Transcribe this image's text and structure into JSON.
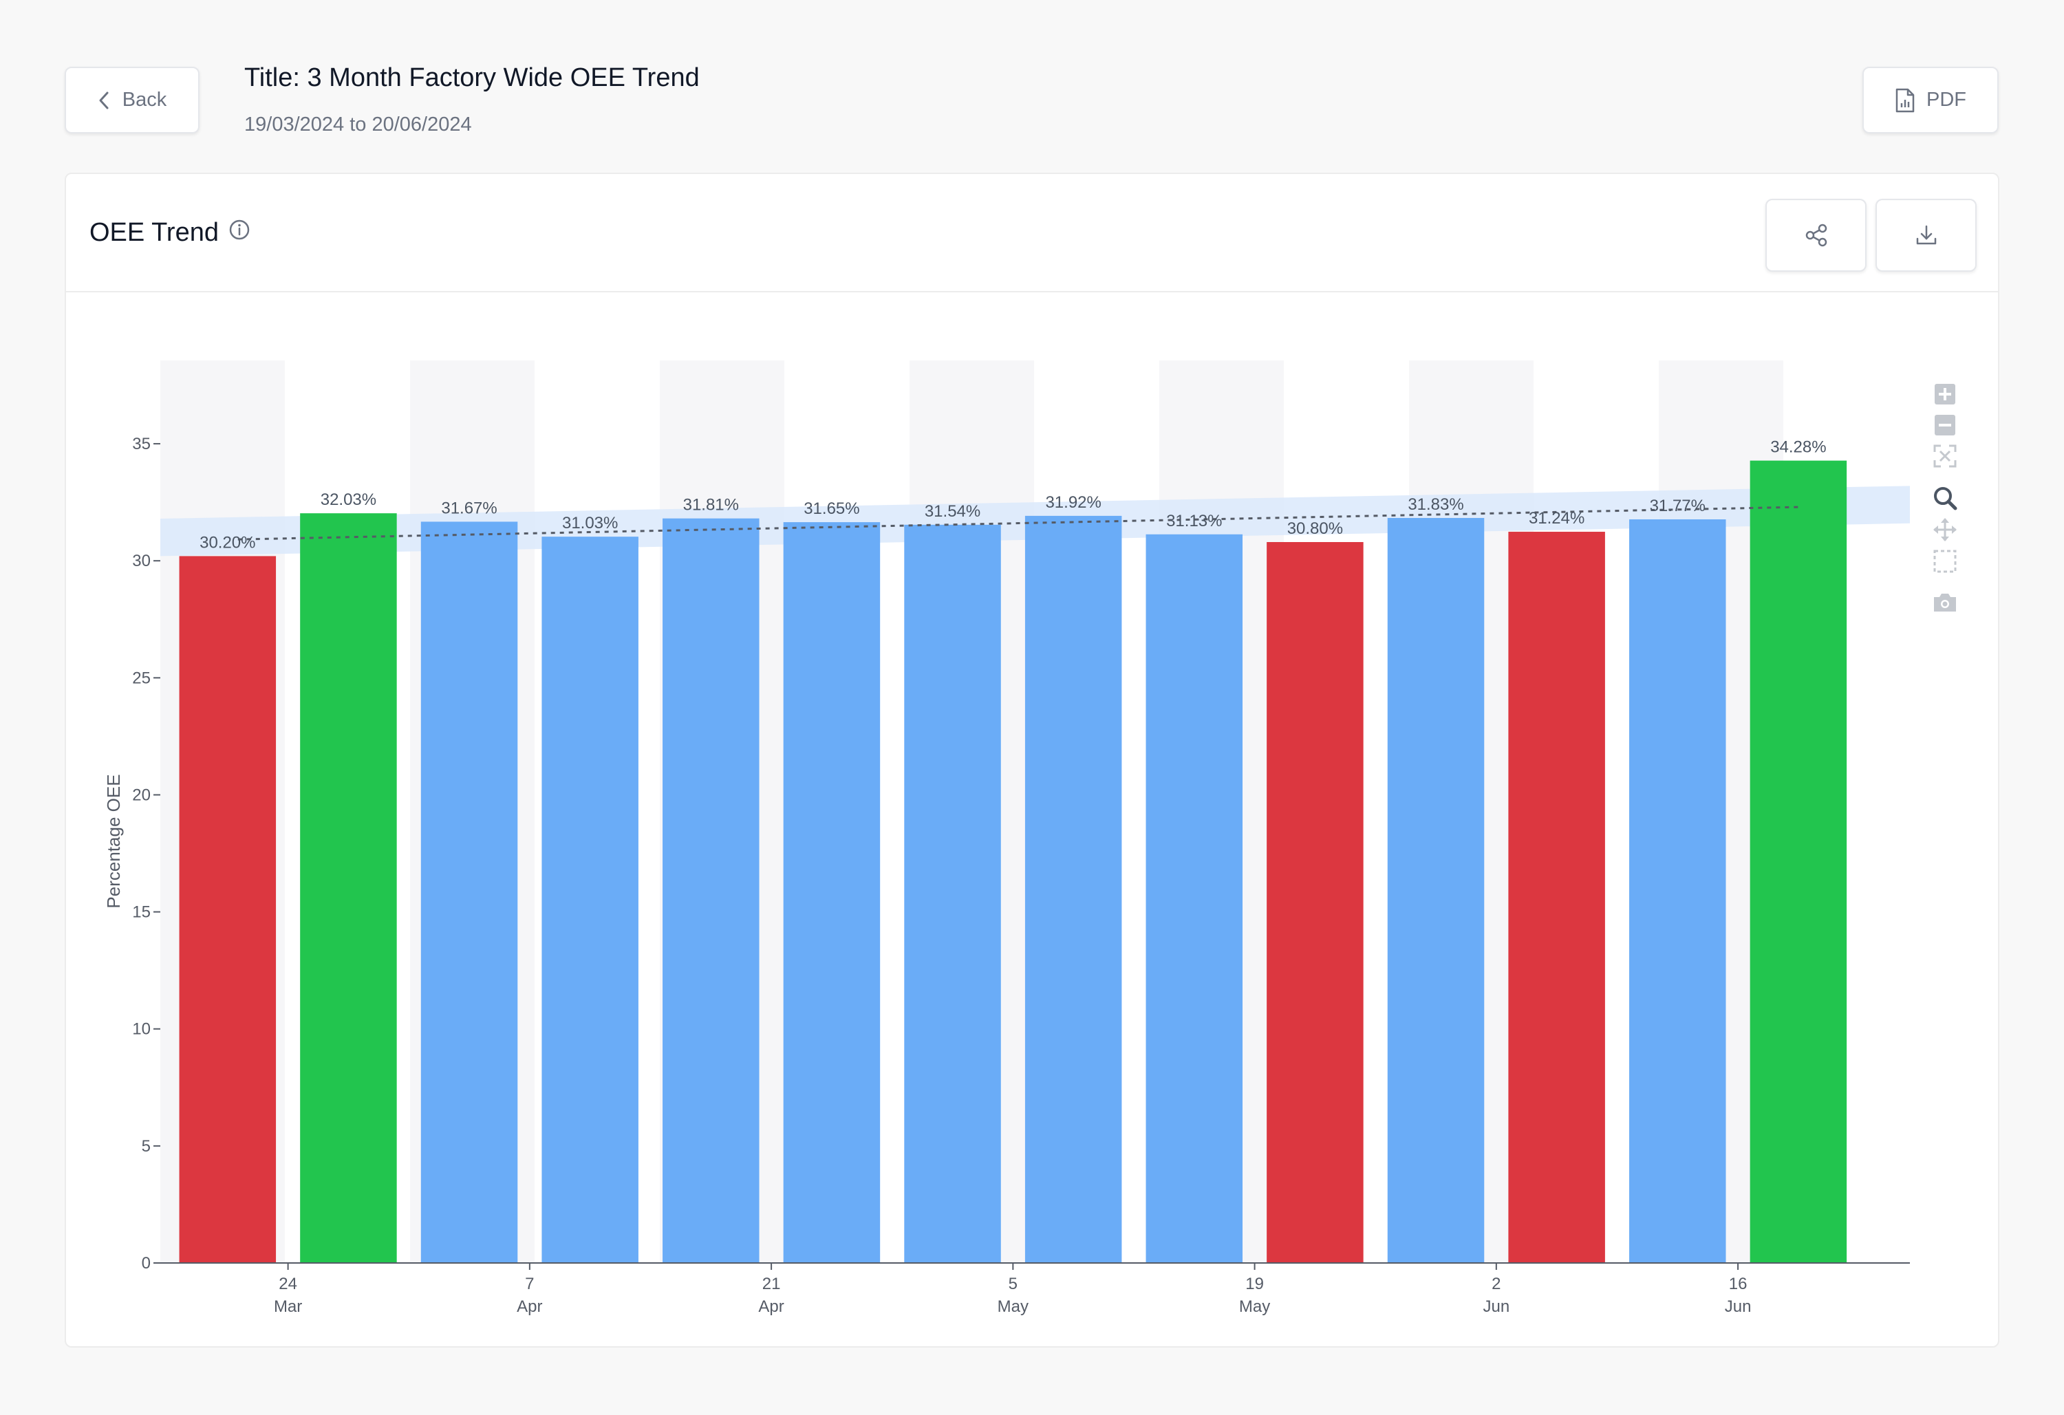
{
  "header": {
    "back_label": "Back",
    "title": "Title: 3 Month Factory Wide OEE Trend",
    "date_range": "19/03/2024 to 20/06/2024",
    "pdf_label": "PDF"
  },
  "card": {
    "title": "OEE Trend",
    "info_icon": "info-icon",
    "share_icon": "share-icon",
    "download_icon": "download-icon"
  },
  "modebar": {
    "icons": [
      "zoom-in-icon",
      "zoom-out-icon",
      "autoscale-icon",
      "zoom-icon",
      "pan-icon",
      "box-select-icon",
      "camera-icon"
    ]
  },
  "colors": {
    "below_trend": "#dc3740",
    "above_trend": "#22c54e",
    "normal": "#6aacf7",
    "band": "#dbe9fb",
    "trend_line": "#555b66"
  },
  "chart_data": {
    "type": "bar",
    "ylabel": "Percentage OEE",
    "ylim": [
      0,
      38.5
    ],
    "yticks": [
      0,
      5,
      10,
      15,
      20,
      25,
      30,
      35
    ],
    "x_ticks": [
      {
        "day": "24",
        "month": "Mar",
        "after_bar": 1
      },
      {
        "day": "7",
        "month": "Apr",
        "after_bar": 3
      },
      {
        "day": "21",
        "month": "Apr",
        "after_bar": 5
      },
      {
        "day": "5",
        "month": "May",
        "after_bar": 7
      },
      {
        "day": "19",
        "month": "May",
        "after_bar": 9
      },
      {
        "day": "2",
        "month": "Jun",
        "after_bar": 11
      },
      {
        "day": "16",
        "month": "Jun",
        "after_bar": 13
      }
    ],
    "values": [
      30.2,
      32.03,
      31.67,
      31.03,
      31.81,
      31.65,
      31.54,
      31.92,
      31.13,
      30.8,
      31.83,
      31.24,
      31.77,
      34.28
    ],
    "labels": [
      "30.20%",
      "32.03%",
      "31.67%",
      "31.03%",
      "31.81%",
      "31.65%",
      "31.54%",
      "31.92%",
      "31.13%",
      "30.80%",
      "31.83%",
      "31.24%",
      "31.77%",
      "34.28%"
    ],
    "status": [
      "below",
      "above",
      "normal",
      "normal",
      "normal",
      "normal",
      "normal",
      "normal",
      "normal",
      "below",
      "normal",
      "below",
      "normal",
      "above"
    ],
    "trend": {
      "start": 30.9,
      "end": 32.3
    },
    "band": {
      "start_low": 30.2,
      "start_high": 31.8,
      "end_low": 31.6,
      "end_high": 33.2
    },
    "grid": false,
    "legend": "none"
  }
}
